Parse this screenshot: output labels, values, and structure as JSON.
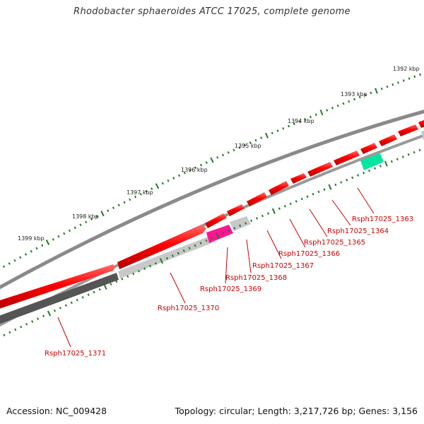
{
  "title": "Rhodobacter sphaeroides ATCC 17025, complete genome",
  "footer": {
    "accession": "Accession: NC_009428",
    "summary": "Topology: circular; Length: 3,217,726 bp; Genes: 3,156"
  },
  "colors": {
    "forward_gene": "#ff0000",
    "reverse_gene_light": "#c8c8c8",
    "reverse_gene_dark": "#555555",
    "highlight_gene": "#ff1493",
    "teal_gene": "#00e6a0",
    "tick": "#227722",
    "label": "#cc0000",
    "backbone": "#888888"
  },
  "chart_data": {
    "type": "genome_map",
    "topology": "circular",
    "length_bp": 3217726,
    "scale_labels": [
      "1399 kbp",
      "1398 kbp",
      "1397 kbp",
      "1396 kbp",
      "1395 kbp",
      "1394 kbp",
      "1393 kbp",
      "1392 kbp"
    ],
    "gene_labels": [
      "Rsph17025_1363",
      "Rsph17025_1364",
      "Rsph17025_1365",
      "Rsph17025_1366",
      "Rsph17025_1367",
      "Rsph17025_1368",
      "Rsph17025_1369",
      "Rsph17025_1370",
      "Rsph17025_1371"
    ]
  }
}
